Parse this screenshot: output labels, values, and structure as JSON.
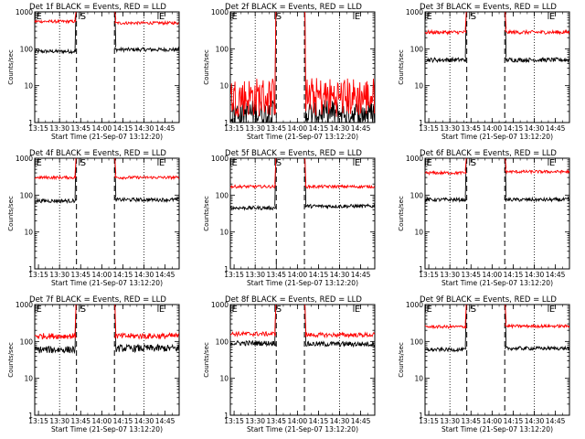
{
  "colors": {
    "events": "#000000",
    "lld": "#ff0000",
    "axes": "#000000",
    "background": "#ffffff"
  },
  "chart_data": [
    {
      "type": "line",
      "title": "Det 1f BLACK = Events, RED = LLD",
      "xlabel": "Start Time (21-Sep-07 13:12:20)",
      "ylabel": "Counts/sec",
      "yscale": "log",
      "ylim": [
        1,
        1000
      ],
      "xlim": [
        "13:12:20",
        "14:55"
      ],
      "y_tick_labels": [
        "1",
        "10",
        "100",
        "1000"
      ],
      "x_tick_labels": [
        "13:15",
        "13:30",
        "13:45",
        "14:00",
        "14:15",
        "14:30",
        "14:45"
      ],
      "markers": [
        {
          "label": "E",
          "time": "13:12:40"
        },
        {
          "label": "S",
          "time": "13:44"
        },
        {
          "label": "E",
          "time": "14:40"
        }
      ],
      "dotted_lines": [
        "13:30",
        "14:30"
      ],
      "dashed_lines": [
        "13:42",
        "14:09"
      ],
      "gap": [
        "13:42",
        "14:09"
      ],
      "series": [
        {
          "name": "Events",
          "color": "#000000",
          "level_before": 85,
          "level_after": 95,
          "noise": 0.05
        },
        {
          "name": "LLD",
          "color": "#ff0000",
          "level_before": 550,
          "level_after": 500,
          "noise": 0.04
        }
      ]
    },
    {
      "type": "line",
      "title": "Det 2f BLACK = Events, RED = LLD",
      "xlabel": "Start Time (21-Sep-07 13:12:20)",
      "ylabel": "Counts/sec",
      "yscale": "log",
      "ylim": [
        1,
        1000
      ],
      "xlim": [
        "13:12:20",
        "14:55"
      ],
      "y_tick_labels": [
        "1",
        "10",
        "100",
        "1000"
      ],
      "x_tick_labels": [
        "13:15",
        "13:30",
        "13:45",
        "14:00",
        "14:15",
        "14:30",
        "14:45"
      ],
      "markers": [
        {
          "label": "E",
          "time": "13:12:40"
        },
        {
          "label": "S",
          "time": "13:44"
        },
        {
          "label": "E",
          "time": "14:40"
        }
      ],
      "dotted_lines": [
        "13:30",
        "14:30"
      ],
      "dashed_lines": [
        "13:45",
        "14:05"
      ],
      "gap": [
        "13:45",
        "14:05"
      ],
      "series": [
        {
          "name": "Events",
          "color": "#000000",
          "level_before": 1.3,
          "level_after": 1.3,
          "noise": 0.3
        },
        {
          "name": "LLD",
          "color": "#ff0000",
          "level_before": 3,
          "level_after": 3,
          "noise": 0.45
        }
      ]
    },
    {
      "type": "line",
      "title": "Det 3f BLACK = Events, RED = LLD",
      "xlabel": "Start Time (21-Sep-07 13:12:20)",
      "ylabel": "Counts/sec",
      "yscale": "log",
      "ylim": [
        1,
        1000
      ],
      "xlim": [
        "13:12:20",
        "14:55"
      ],
      "y_tick_labels": [
        "1",
        "10",
        "100",
        "1000"
      ],
      "x_tick_labels": [
        "13:15",
        "13:30",
        "13:45",
        "14:00",
        "14:15",
        "14:30",
        "14:45"
      ],
      "markers": [
        {
          "label": "E",
          "time": "13:12:40"
        },
        {
          "label": "S",
          "time": "13:44"
        },
        {
          "label": "E",
          "time": "14:40"
        }
      ],
      "dotted_lines": [
        "13:30",
        "14:30"
      ],
      "dashed_lines": [
        "13:42",
        "14:09"
      ],
      "gap": [
        "13:42",
        "14:09"
      ],
      "series": [
        {
          "name": "Events",
          "color": "#000000",
          "level_before": 50,
          "level_after": 50,
          "noise": 0.06
        },
        {
          "name": "LLD",
          "color": "#ff0000",
          "level_before": 280,
          "level_after": 280,
          "noise": 0.05
        }
      ]
    },
    {
      "type": "line",
      "title": "Det 4f BLACK = Events, RED = LLD",
      "xlabel": "Start Time (21-Sep-07 13:12:20)",
      "ylabel": "Counts/sec",
      "yscale": "log",
      "ylim": [
        1,
        1000
      ],
      "xlim": [
        "13:12:20",
        "14:55"
      ],
      "y_tick_labels": [
        "1",
        "10",
        "100",
        "1000"
      ],
      "x_tick_labels": [
        "13:15",
        "13:30",
        "13:45",
        "14:00",
        "14:15",
        "14:30",
        "14:45"
      ],
      "markers": [
        {
          "label": "E",
          "time": "13:12:40"
        },
        {
          "label": "S",
          "time": "13:44"
        },
        {
          "label": "E",
          "time": "14:40"
        }
      ],
      "dotted_lines": [
        "13:30",
        "14:30"
      ],
      "dashed_lines": [
        "13:42",
        "14:09"
      ],
      "gap": [
        "13:42",
        "14:09"
      ],
      "series": [
        {
          "name": "Events",
          "color": "#000000",
          "level_before": 70,
          "level_after": 75,
          "noise": 0.05
        },
        {
          "name": "LLD",
          "color": "#ff0000",
          "level_before": 300,
          "level_after": 300,
          "noise": 0.04
        }
      ]
    },
    {
      "type": "line",
      "title": "Det 5f BLACK = Events, RED = LLD",
      "xlabel": "Start Time (21-Sep-07 13:12:20)",
      "ylabel": "Counts/sec",
      "yscale": "log",
      "ylim": [
        1,
        1000
      ],
      "xlim": [
        "13:12:20",
        "14:55"
      ],
      "y_tick_labels": [
        "1",
        "10",
        "100",
        "1000"
      ],
      "x_tick_labels": [
        "13:15",
        "13:30",
        "13:45",
        "14:00",
        "14:15",
        "14:30",
        "14:45"
      ],
      "markers": [
        {
          "label": "E",
          "time": "13:12:40"
        },
        {
          "label": "S",
          "time": "13:44"
        },
        {
          "label": "E",
          "time": "14:40"
        }
      ],
      "dotted_lines": [
        "13:30",
        "14:30"
      ],
      "dashed_lines": [
        "13:45",
        "14:05"
      ],
      "gap": [
        "13:45",
        "14:05"
      ],
      "series": [
        {
          "name": "Events",
          "color": "#000000",
          "level_before": 45,
          "level_after": 50,
          "noise": 0.05
        },
        {
          "name": "LLD",
          "color": "#ff0000",
          "level_before": 170,
          "level_after": 170,
          "noise": 0.04
        }
      ]
    },
    {
      "type": "line",
      "title": "Det 6f BLACK = Events, RED = LLD",
      "xlabel": "Start Time (21-Sep-07 13:12:20)",
      "ylabel": "Counts/sec",
      "yscale": "log",
      "ylim": [
        1,
        1000
      ],
      "xlim": [
        "13:12:20",
        "14:55"
      ],
      "y_tick_labels": [
        "1",
        "10",
        "100",
        "1000"
      ],
      "x_tick_labels": [
        "13:15",
        "13:30",
        "13:45",
        "14:00",
        "14:15",
        "14:30",
        "14:45"
      ],
      "markers": [
        {
          "label": "E",
          "time": "13:12:40"
        },
        {
          "label": "S",
          "time": "13:44"
        },
        {
          "label": "E",
          "time": "14:40"
        }
      ],
      "dotted_lines": [
        "13:30",
        "14:30"
      ],
      "dashed_lines": [
        "13:42",
        "14:09"
      ],
      "gap": [
        "13:42",
        "14:09"
      ],
      "series": [
        {
          "name": "Events",
          "color": "#000000",
          "level_before": 75,
          "level_after": 75,
          "noise": 0.05
        },
        {
          "name": "LLD",
          "color": "#ff0000",
          "level_before": 400,
          "level_after": 430,
          "noise": 0.04
        }
      ]
    },
    {
      "type": "line",
      "title": "Det 7f BLACK = Events, RED = LLD",
      "xlabel": "Start Time (21-Sep-07 13:12:20)",
      "ylabel": "Counts/sec",
      "yscale": "log",
      "ylim": [
        1,
        1000
      ],
      "xlim": [
        "13:12:20",
        "14:55"
      ],
      "y_tick_labels": [
        "1",
        "10",
        "100",
        "1000"
      ],
      "x_tick_labels": [
        "13:15",
        "13:30",
        "13:45",
        "14:00",
        "14:15",
        "14:30",
        "14:45"
      ],
      "markers": [
        {
          "label": "E",
          "time": "13:12:40"
        },
        {
          "label": "S",
          "time": "13:44"
        },
        {
          "label": "E",
          "time": "14:40"
        }
      ],
      "dotted_lines": [
        "13:30",
        "14:30"
      ],
      "dashed_lines": [
        "13:42",
        "14:09"
      ],
      "gap": [
        "13:42",
        "14:09"
      ],
      "series": [
        {
          "name": "Events",
          "color": "#000000",
          "level_before": 60,
          "level_after": 65,
          "noise": 0.1
        },
        {
          "name": "LLD",
          "color": "#ff0000",
          "level_before": 140,
          "level_after": 140,
          "noise": 0.08
        }
      ]
    },
    {
      "type": "line",
      "title": "Det 8f BLACK = Events, RED = LLD",
      "xlabel": "Start Time (21-Sep-07 13:12:20)",
      "ylabel": "Counts/sec",
      "yscale": "log",
      "ylim": [
        1,
        1000
      ],
      "xlim": [
        "13:12:20",
        "14:55"
      ],
      "y_tick_labels": [
        "1",
        "10",
        "100",
        "1000"
      ],
      "x_tick_labels": [
        "13:15",
        "13:30",
        "13:45",
        "14:00",
        "14:15",
        "14:30",
        "14:45"
      ],
      "markers": [
        {
          "label": "E",
          "time": "13:12:40"
        },
        {
          "label": "S",
          "time": "13:44"
        },
        {
          "label": "E",
          "time": "14:40"
        }
      ],
      "dotted_lines": [
        "13:30",
        "14:30"
      ],
      "dashed_lines": [
        "13:45",
        "14:05"
      ],
      "gap": [
        "13:45",
        "14:05"
      ],
      "series": [
        {
          "name": "Events",
          "color": "#000000",
          "level_before": 90,
          "level_after": 85,
          "noise": 0.07
        },
        {
          "name": "LLD",
          "color": "#ff0000",
          "level_before": 160,
          "level_after": 150,
          "noise": 0.06
        }
      ]
    },
    {
      "type": "line",
      "title": "Det 9f BLACK = Events, RED = LLD",
      "xlabel": "Start Time (21-Sep-07 13:12:20)",
      "ylabel": "Counts/sec",
      "yscale": "log",
      "ylim": [
        1,
        1000
      ],
      "xlim": [
        "13:12:20",
        "14:55"
      ],
      "y_tick_labels": [
        "1",
        "10",
        "100",
        "1000"
      ],
      "x_tick_labels": [
        "13:15",
        "13:30",
        "13:45",
        "14:00",
        "14:15",
        "14:30",
        "14:45"
      ],
      "markers": [
        {
          "label": "E",
          "time": "13:12:40"
        },
        {
          "label": "S",
          "time": "13:44"
        },
        {
          "label": "E",
          "time": "14:40"
        }
      ],
      "dotted_lines": [
        "13:30",
        "14:30"
      ],
      "dashed_lines": [
        "13:42",
        "14:09"
      ],
      "gap": [
        "13:42",
        "14:09"
      ],
      "series": [
        {
          "name": "Events",
          "color": "#000000",
          "level_before": 60,
          "level_after": 65,
          "noise": 0.05
        },
        {
          "name": "LLD",
          "color": "#ff0000",
          "level_before": 250,
          "level_after": 260,
          "noise": 0.04
        }
      ]
    }
  ]
}
